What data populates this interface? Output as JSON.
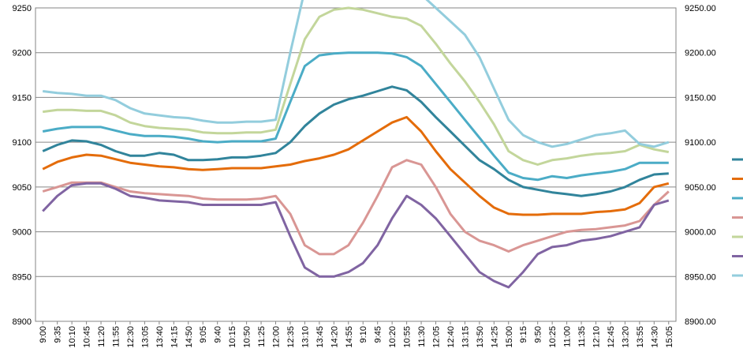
{
  "chart_data": {
    "type": "line",
    "title": "",
    "x_ticks": [
      "9:00",
      "9:35",
      "10:10",
      "10:45",
      "11:20",
      "11:55",
      "12:30",
      "13:05",
      "13:40",
      "14:15",
      "14:50",
      "9:05",
      "9:40",
      "10:15",
      "10:50",
      "11:25",
      "12:00",
      "12:35",
      "13:10",
      "13:45",
      "14:20",
      "14:55",
      "9:10",
      "9:45",
      "10:20",
      "10:55",
      "11:30",
      "12:05",
      "12:40",
      "13:15",
      "13:50",
      "14:25",
      "15:00",
      "9:15",
      "9:50",
      "10:25",
      "11:00",
      "11:35",
      "12:10",
      "12:45",
      "13:20",
      "13:55",
      "14:30",
      "15:05"
    ],
    "y_left_ticks": [
      "8900",
      "8950",
      "9000",
      "9050",
      "9100",
      "9150",
      "9200",
      "9250"
    ],
    "y_right_ticks": [
      "8900.00",
      "8950.00",
      "9000.00",
      "9050.00",
      "9100.00",
      "9150.00",
      "9200.00",
      "9250.00"
    ],
    "ylim": [
      8900,
      9250
    ],
    "grid": true,
    "legend": "right",
    "series": [
      {
        "color": "#31849B",
        "values": [
          9090,
          9097,
          9102,
          9101,
          9097,
          9090,
          9085,
          9085,
          9088,
          9086,
          9080,
          9080,
          9081,
          9083,
          9083,
          9085,
          9088,
          9100,
          9118,
          9132,
          9142,
          9148,
          9152,
          9157,
          9162,
          9158,
          9145,
          9128,
          9112,
          9096,
          9080,
          9070,
          9058,
          9050,
          9047,
          9044,
          9042,
          9040,
          9042,
          9045,
          9050,
          9058,
          9064,
          9065
        ]
      },
      {
        "color": "#E46C0A",
        "values": [
          9070,
          9078,
          9083,
          9086,
          9085,
          9081,
          9077,
          9075,
          9073,
          9072,
          9070,
          9069,
          9070,
          9071,
          9071,
          9071,
          9073,
          9075,
          9079,
          9082,
          9086,
          9092,
          9102,
          9112,
          9122,
          9128,
          9112,
          9090,
          9070,
          9055,
          9040,
          9027,
          9020,
          9019,
          9019,
          9020,
          9020,
          9020,
          9022,
          9023,
          9025,
          9032,
          9050,
          9054
        ]
      },
      {
        "color": "#4BACC6",
        "values": [
          9112,
          9115,
          9117,
          9117,
          9117,
          9113,
          9109,
          9107,
          9107,
          9106,
          9104,
          9101,
          9100,
          9101,
          9101,
          9101,
          9104,
          9145,
          9185,
          9197,
          9199,
          9200,
          9200,
          9200,
          9199,
          9195,
          9185,
          9165,
          9145,
          9125,
          9105,
          9085,
          9066,
          9060,
          9058,
          9062,
          9060,
          9063,
          9065,
          9067,
          9070,
          9077,
          9077,
          9077
        ]
      },
      {
        "color": "#D99694",
        "values": [
          9045,
          9050,
          9055,
          9055,
          9055,
          9050,
          9045,
          9043,
          9042,
          9041,
          9040,
          9037,
          9036,
          9036,
          9036,
          9037,
          9040,
          9020,
          8985,
          8975,
          8975,
          8985,
          9010,
          9040,
          9072,
          9080,
          9075,
          9050,
          9020,
          9000,
          8990,
          8985,
          8978,
          8985,
          8990,
          8995,
          9000,
          9002,
          9003,
          9005,
          9007,
          9012,
          9030,
          9045
        ]
      },
      {
        "color": "#C3D69B",
        "values": [
          9134,
          9136,
          9136,
          9135,
          9135,
          9130,
          9122,
          9118,
          9116,
          9115,
          9114,
          9111,
          9110,
          9110,
          9111,
          9111,
          9114,
          9165,
          9215,
          9240,
          9248,
          9250,
          9248,
          9244,
          9240,
          9238,
          9230,
          9210,
          9188,
          9168,
          9145,
          9120,
          9090,
          9080,
          9075,
          9080,
          9082,
          9085,
          9087,
          9088,
          9090,
          9097,
          9092,
          9089
        ]
      },
      {
        "color": "#8064A2",
        "values": [
          9023,
          9040,
          9052,
          9054,
          9054,
          9048,
          9040,
          9038,
          9035,
          9034,
          9033,
          9030,
          9030,
          9030,
          9030,
          9030,
          9033,
          8995,
          8960,
          8950,
          8950,
          8955,
          8965,
          8985,
          9015,
          9040,
          9030,
          9015,
          8995,
          8975,
          8955,
          8945,
          8938,
          8955,
          8975,
          8983,
          8985,
          8990,
          8992,
          8995,
          9000,
          9005,
          9030,
          9035
        ]
      },
      {
        "color": "#93CDDD",
        "values": [
          9157,
          9155,
          9154,
          9152,
          9152,
          9147,
          9138,
          9132,
          9130,
          9128,
          9127,
          9124,
          9122,
          9122,
          9123,
          9123,
          9125,
          9200,
          9270,
          9290,
          9290,
          9290,
          9290,
          9290,
          9285,
          9280,
          9265,
          9250,
          9235,
          9220,
          9195,
          9160,
          9125,
          9108,
          9100,
          9095,
          9098,
          9103,
          9108,
          9110,
          9113,
          9098,
          9095,
          9100
        ]
      }
    ]
  }
}
